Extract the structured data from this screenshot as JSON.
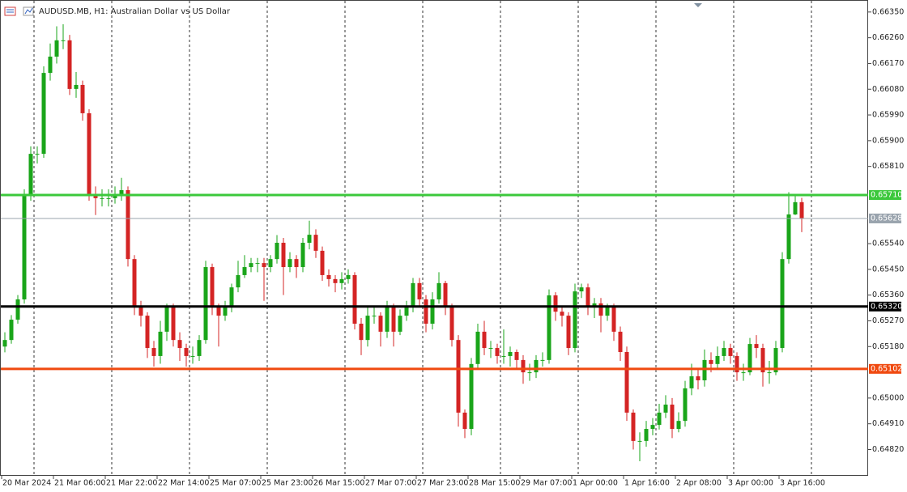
{
  "chart_data": {
    "type": "candlestick",
    "title": "AUDUSD.MB, H1:  Australian Dollar vs US Dollar",
    "up_color": "#1aa51a",
    "down_color": "#d42424",
    "ylim": [
      0.64728,
      0.66392
    ],
    "yticks": [
      {
        "value": 0.6635,
        "label": "0.66350"
      },
      {
        "value": 0.6626,
        "label": "0.66260"
      },
      {
        "value": 0.6617,
        "label": "0.66170"
      },
      {
        "value": 0.6608,
        "label": "0.66080"
      },
      {
        "value": 0.6599,
        "label": "0.65990"
      },
      {
        "value": 0.659,
        "label": "0.65900"
      },
      {
        "value": 0.6581,
        "label": "0.65810"
      },
      {
        "value": 0.6554,
        "label": "0.65540"
      },
      {
        "value": 0.6545,
        "label": "0.65450"
      },
      {
        "value": 0.6536,
        "label": "0.65360"
      },
      {
        "value": 0.6527,
        "label": "0.65270"
      },
      {
        "value": 0.6518,
        "label": "0.65180"
      },
      {
        "value": 0.65,
        "label": "0.65000"
      },
      {
        "value": 0.6491,
        "label": "0.64910"
      },
      {
        "value": 0.6482,
        "label": "0.64820"
      }
    ],
    "xticks": [
      {
        "value": 0,
        "label": "20 Mar 2024"
      },
      {
        "value": 8,
        "label": "21 Mar 06:00"
      },
      {
        "value": 16,
        "label": "21 Mar 22:00"
      },
      {
        "value": 24,
        "label": "22 Mar 14:00"
      },
      {
        "value": 32,
        "label": "25 Mar 07:00"
      },
      {
        "value": 40,
        "label": "25 Mar 23:00"
      },
      {
        "value": 48,
        "label": "26 Mar 15:00"
      },
      {
        "value": 56,
        "label": "27 Mar 07:00"
      },
      {
        "value": 64,
        "label": "27 Mar 23:00"
      },
      {
        "value": 72,
        "label": "28 Mar 15:00"
      },
      {
        "value": 80,
        "label": "29 Mar 07:00"
      },
      {
        "value": 88,
        "label": "1 Apr 00:00"
      },
      {
        "value": 96,
        "label": "1 Apr 16:00"
      },
      {
        "value": 104,
        "label": "2 Apr 08:00"
      },
      {
        "value": 112,
        "label": "3 Apr 00:00"
      },
      {
        "value": 120,
        "label": "3 Apr 16:00"
      }
    ],
    "levels": [
      {
        "value": 0.6571,
        "label": "0.65710",
        "color": "#3cc83c"
      },
      {
        "value": 0.65628,
        "label": "0.65628",
        "color": "#9aa4ae"
      },
      {
        "value": 0.6532,
        "label": "0.65320",
        "color": "#000000"
      },
      {
        "value": 0.65102,
        "label": "0.65102",
        "color": "#f04a10"
      }
    ],
    "candles": [
      [
        0.6518,
        0.6523,
        0.6516,
        0.65203
      ],
      [
        0.65203,
        0.6529,
        0.6519,
        0.65274
      ],
      [
        0.65274,
        0.6536,
        0.6526,
        0.65345
      ],
      [
        0.65345,
        0.6573,
        0.6533,
        0.65713
      ],
      [
        0.65713,
        0.6588,
        0.6569,
        0.65854
      ],
      [
        0.65854,
        0.6588,
        0.6582,
        0.65854
      ],
      [
        0.65854,
        0.6616,
        0.6584,
        0.66137
      ],
      [
        0.66137,
        0.6624,
        0.6611,
        0.66194
      ],
      [
        0.66194,
        0.663,
        0.6617,
        0.66251
      ],
      [
        0.66251,
        0.66307,
        0.6622,
        0.66251
      ],
      [
        0.66251,
        0.6627,
        0.6606,
        0.66081
      ],
      [
        0.66081,
        0.6614,
        0.6605,
        0.66095
      ],
      [
        0.66095,
        0.6611,
        0.6597,
        0.65996
      ],
      [
        0.65996,
        0.6601,
        0.6569,
        0.65713
      ],
      [
        0.65713,
        0.6574,
        0.6564,
        0.65699
      ],
      [
        0.65699,
        0.6573,
        0.6567,
        0.65699
      ],
      [
        0.65699,
        0.6573,
        0.6567,
        0.65699
      ],
      [
        0.65699,
        0.6574,
        0.6568,
        0.65713
      ],
      [
        0.65713,
        0.6577,
        0.6569,
        0.65727
      ],
      [
        0.65727,
        0.6574,
        0.6546,
        0.65486
      ],
      [
        0.65486,
        0.655,
        0.6529,
        0.65317
      ],
      [
        0.65317,
        0.6534,
        0.6525,
        0.65288
      ],
      [
        0.65288,
        0.653,
        0.6514,
        0.65175
      ],
      [
        0.65175,
        0.652,
        0.6511,
        0.65147
      ],
      [
        0.65147,
        0.6527,
        0.6512,
        0.65232
      ],
      [
        0.65232,
        0.6533,
        0.652,
        0.65317
      ],
      [
        0.65317,
        0.6533,
        0.6518,
        0.65203
      ],
      [
        0.65203,
        0.6523,
        0.6513,
        0.65175
      ],
      [
        0.65175,
        0.6519,
        0.6511,
        0.65147
      ],
      [
        0.65147,
        0.6518,
        0.6512,
        0.65147
      ],
      [
        0.65147,
        0.6522,
        0.6513,
        0.65203
      ],
      [
        0.65203,
        0.6548,
        0.6519,
        0.65458
      ],
      [
        0.65458,
        0.6547,
        0.6529,
        0.65317
      ],
      [
        0.65317,
        0.6533,
        0.6518,
        0.65288
      ],
      [
        0.65288,
        0.6534,
        0.6527,
        0.65317
      ],
      [
        0.65317,
        0.654,
        0.653,
        0.65387
      ],
      [
        0.65387,
        0.6548,
        0.6537,
        0.6543
      ],
      [
        0.6543,
        0.655,
        0.6542,
        0.65458
      ],
      [
        0.65458,
        0.6549,
        0.6544,
        0.65472
      ],
      [
        0.65472,
        0.6549,
        0.6544,
        0.65472
      ],
      [
        0.65472,
        0.6549,
        0.6534,
        0.65458
      ],
      [
        0.65458,
        0.655,
        0.6544,
        0.65486
      ],
      [
        0.65486,
        0.6557,
        0.6547,
        0.65543
      ],
      [
        0.65543,
        0.6556,
        0.6536,
        0.65458
      ],
      [
        0.65458,
        0.6551,
        0.6544,
        0.65486
      ],
      [
        0.65486,
        0.655,
        0.6542,
        0.65458
      ],
      [
        0.65458,
        0.6556,
        0.6544,
        0.65543
      ],
      [
        0.65543,
        0.6562,
        0.6552,
        0.65571
      ],
      [
        0.65571,
        0.6559,
        0.6549,
        0.65515
      ],
      [
        0.65515,
        0.6553,
        0.6541,
        0.6543
      ],
      [
        0.6543,
        0.6545,
        0.6539,
        0.65416
      ],
      [
        0.65416,
        0.6543,
        0.6537,
        0.65402
      ],
      [
        0.65402,
        0.6544,
        0.6538,
        0.65416
      ],
      [
        0.65416,
        0.6545,
        0.654,
        0.6543
      ],
      [
        0.6543,
        0.6544,
        0.6524,
        0.6526
      ],
      [
        0.6526,
        0.6528,
        0.6515,
        0.65203
      ],
      [
        0.65203,
        0.6532,
        0.6518,
        0.65288
      ],
      [
        0.65288,
        0.6532,
        0.6526,
        0.65288
      ],
      [
        0.65288,
        0.653,
        0.6518,
        0.65232
      ],
      [
        0.65232,
        0.6534,
        0.6521,
        0.65317
      ],
      [
        0.65317,
        0.6533,
        0.6518,
        0.65232
      ],
      [
        0.65232,
        0.6531,
        0.6522,
        0.65288
      ],
      [
        0.65288,
        0.6534,
        0.6527,
        0.65317
      ],
      [
        0.65317,
        0.6542,
        0.653,
        0.65402
      ],
      [
        0.65402,
        0.6542,
        0.6532,
        0.65345
      ],
      [
        0.65345,
        0.6536,
        0.6523,
        0.6526
      ],
      [
        0.6526,
        0.6537,
        0.6524,
        0.65345
      ],
      [
        0.65345,
        0.6544,
        0.6533,
        0.65402
      ],
      [
        0.65402,
        0.6541,
        0.6529,
        0.65317
      ],
      [
        0.65317,
        0.6533,
        0.6518,
        0.65203
      ],
      [
        0.65203,
        0.6522,
        0.649,
        0.64949
      ],
      [
        0.64949,
        0.6496,
        0.6486,
        0.64892
      ],
      [
        0.64892,
        0.6514,
        0.6487,
        0.65119
      ],
      [
        0.65119,
        0.6526,
        0.651,
        0.65232
      ],
      [
        0.65232,
        0.6527,
        0.6515,
        0.65175
      ],
      [
        0.65175,
        0.652,
        0.6514,
        0.65175
      ],
      [
        0.65175,
        0.6519,
        0.6512,
        0.65147
      ],
      [
        0.65147,
        0.6524,
        0.6512,
        0.65147
      ],
      [
        0.65147,
        0.6518,
        0.6511,
        0.65161
      ],
      [
        0.65161,
        0.6517,
        0.651,
        0.65133
      ],
      [
        0.65133,
        0.6515,
        0.6505,
        0.6509
      ],
      [
        0.6509,
        0.6512,
        0.6506,
        0.6509
      ],
      [
        0.6509,
        0.6515,
        0.6507,
        0.65133
      ],
      [
        0.65133,
        0.6516,
        0.6511,
        0.65133
      ],
      [
        0.65133,
        0.6538,
        0.6512,
        0.65359
      ],
      [
        0.65359,
        0.6537,
        0.6527,
        0.65302
      ],
      [
        0.65302,
        0.6532,
        0.6525,
        0.65288
      ],
      [
        0.65288,
        0.653,
        0.6515,
        0.65175
      ],
      [
        0.65175,
        0.654,
        0.6516,
        0.65373
      ],
      [
        0.65373,
        0.654,
        0.6535,
        0.65387
      ],
      [
        0.65387,
        0.654,
        0.6529,
        0.65317
      ],
      [
        0.65317,
        0.6535,
        0.6528,
        0.65331
      ],
      [
        0.65331,
        0.6535,
        0.6523,
        0.65288
      ],
      [
        0.65288,
        0.6533,
        0.6527,
        0.65317
      ],
      [
        0.65317,
        0.6533,
        0.652,
        0.65232
      ],
      [
        0.65232,
        0.6525,
        0.6513,
        0.65161
      ],
      [
        0.65161,
        0.6518,
        0.6492,
        0.64949
      ],
      [
        0.64949,
        0.6496,
        0.6482,
        0.6485
      ],
      [
        0.6485,
        0.6488,
        0.64779,
        0.6485
      ],
      [
        0.6485,
        0.6492,
        0.6483,
        0.64892
      ],
      [
        0.64892,
        0.6493,
        0.6487,
        0.64906
      ],
      [
        0.64906,
        0.6498,
        0.6489,
        0.64949
      ],
      [
        0.64949,
        0.6501,
        0.6493,
        0.64977
      ],
      [
        0.64977,
        0.65,
        0.6486,
        0.64892
      ],
      [
        0.64892,
        0.6495,
        0.6488,
        0.6492
      ],
      [
        0.6492,
        0.6506,
        0.649,
        0.65034
      ],
      [
        0.65034,
        0.6512,
        0.6501,
        0.65076
      ],
      [
        0.65076,
        0.651,
        0.6503,
        0.65062
      ],
      [
        0.65062,
        0.6517,
        0.6504,
        0.65133
      ],
      [
        0.65133,
        0.6516,
        0.6509,
        0.65119
      ],
      [
        0.65119,
        0.6518,
        0.651,
        0.65147
      ],
      [
        0.65147,
        0.652,
        0.6513,
        0.65175
      ],
      [
        0.65175,
        0.6519,
        0.6512,
        0.65147
      ],
      [
        0.65147,
        0.6516,
        0.6506,
        0.6509
      ],
      [
        0.6509,
        0.6512,
        0.6506,
        0.6509
      ],
      [
        0.6509,
        0.6521,
        0.6508,
        0.65189
      ],
      [
        0.65189,
        0.6522,
        0.6514,
        0.65175
      ],
      [
        0.65175,
        0.6519,
        0.6504,
        0.6509
      ],
      [
        0.6509,
        0.6513,
        0.6505,
        0.6509
      ],
      [
        0.6509,
        0.652,
        0.6508,
        0.65175
      ],
      [
        0.65175,
        0.6551,
        0.6516,
        0.65486
      ],
      [
        0.65486,
        0.6572,
        0.6547,
        0.65642
      ],
      [
        0.65642,
        0.6571,
        0.6564,
        0.65685
      ],
      [
        0.65685,
        0.657,
        0.6558,
        0.65628
      ]
    ]
  }
}
